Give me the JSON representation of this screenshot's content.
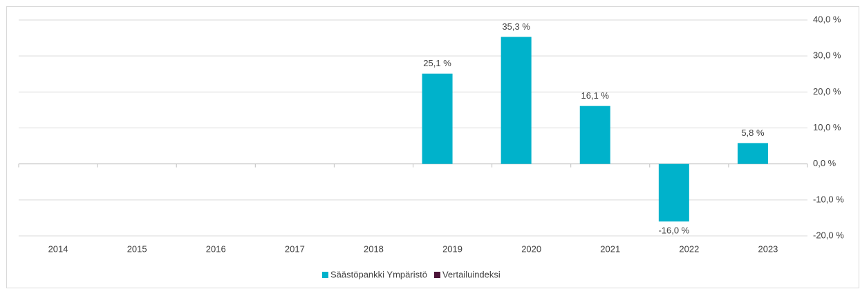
{
  "chart_data": {
    "type": "bar",
    "categories": [
      "2014",
      "2015",
      "2016",
      "2017",
      "2018",
      "2019",
      "2020",
      "2021",
      "2022",
      "2023"
    ],
    "series": [
      {
        "name": "Säästöpankki Ympäristö",
        "color": "#00b2cb",
        "values": [
          null,
          null,
          null,
          null,
          null,
          25.1,
          35.3,
          16.1,
          -16.0,
          5.8
        ],
        "value_labels": [
          null,
          null,
          null,
          null,
          null,
          "25,1 %",
          "35,3 %",
          "16,1 %",
          "-16,0 %",
          "5,8 %"
        ]
      },
      {
        "name": "Vertailuindeksi",
        "color": "#4b1438",
        "values": [
          null,
          null,
          null,
          null,
          null,
          null,
          null,
          null,
          null,
          null
        ]
      }
    ],
    "ylim": [
      -20,
      40
    ],
    "yticks": [
      {
        "value": -20,
        "label": "-20,0 %"
      },
      {
        "value": -10,
        "label": "-10,0 %"
      },
      {
        "value": 0,
        "label": "0,0 %"
      },
      {
        "value": 10,
        "label": "10,0 %"
      },
      {
        "value": 20,
        "label": "20,0 %"
      },
      {
        "value": 30,
        "label": "30,0 %"
      },
      {
        "value": 40,
        "label": "40,0 %"
      }
    ],
    "grid": true,
    "y_axis_side": "right",
    "legend": "bottom"
  }
}
